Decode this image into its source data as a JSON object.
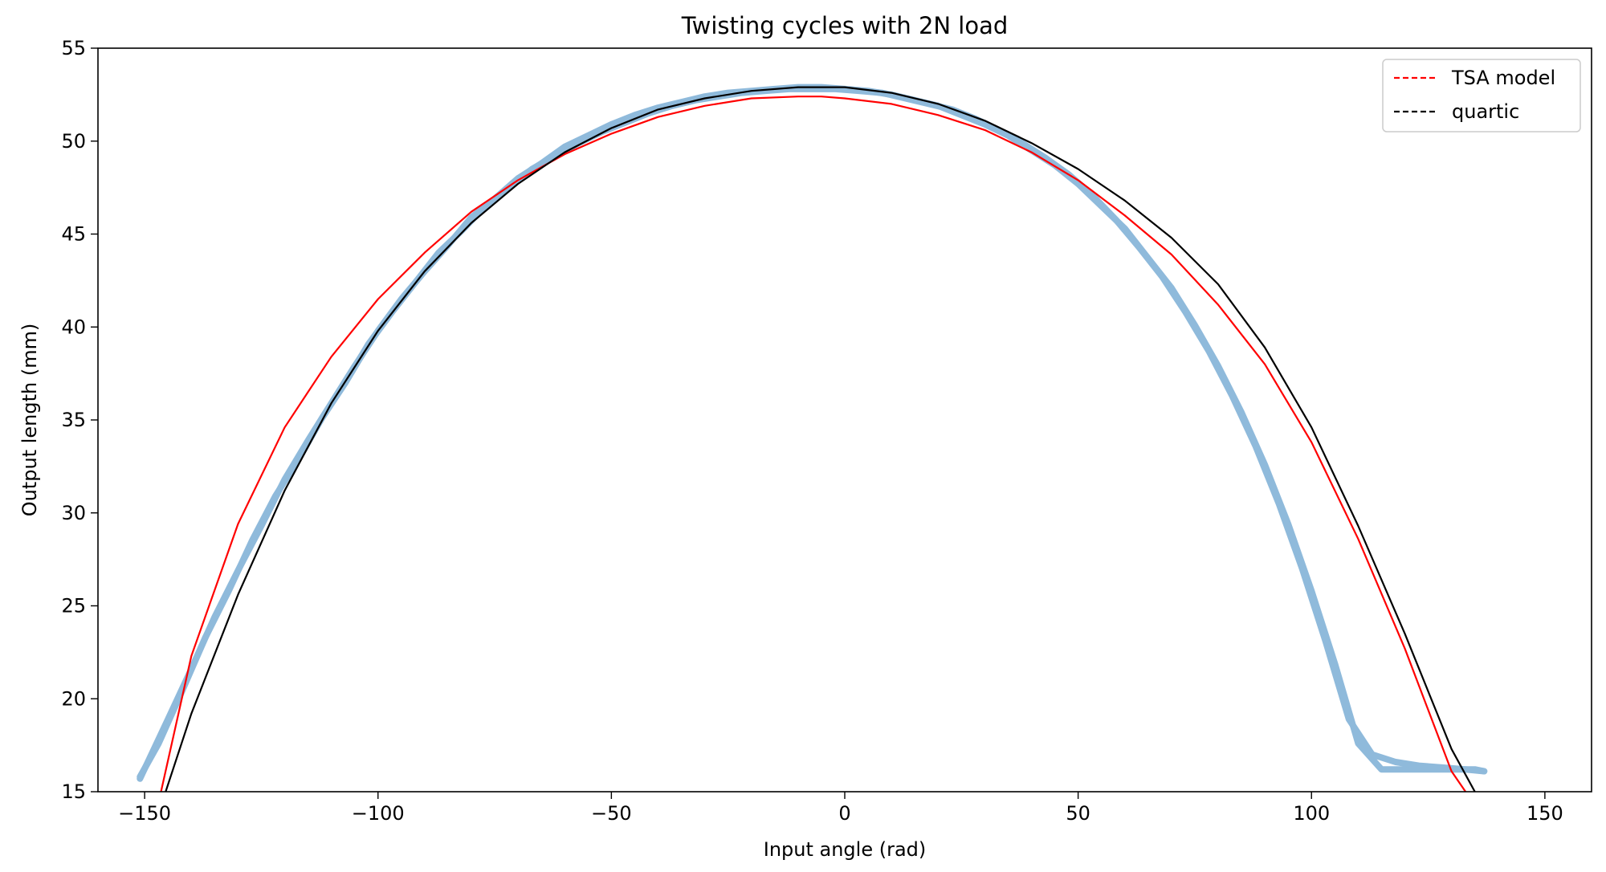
{
  "chart_data": {
    "type": "line",
    "title": "Twisting cycles with 2N load",
    "xlabel": "Input angle (rad)",
    "ylabel": "Output length (mm)",
    "xlim": [
      -160,
      160
    ],
    "ylim": [
      15,
      55
    ],
    "xticks": [
      -150,
      -100,
      -50,
      0,
      50,
      100,
      150
    ],
    "xtick_labels": [
      "−150",
      "−100",
      "−50",
      "0",
      "50",
      "100",
      "150"
    ],
    "yticks": [
      15,
      20,
      25,
      30,
      35,
      40,
      45,
      50,
      55
    ],
    "ytick_labels": [
      "15",
      "20",
      "25",
      "30",
      "35",
      "40",
      "45",
      "50",
      "55"
    ],
    "grid": false,
    "legend_position": "top-right",
    "colors": {
      "data": "#8fbadb",
      "tsa": "#ff0000",
      "quartic": "#000000"
    },
    "legend": [
      {
        "label": "TSA model",
        "color": "#ff0000",
        "dashed": true
      },
      {
        "label": "quartic",
        "color": "#000000",
        "dashed": true
      }
    ],
    "series": [
      {
        "role": "measured-cycle",
        "x": [
          -151,
          -145,
          -140,
          -135,
          -130,
          -125,
          -120,
          -115,
          -110,
          -105,
          -100,
          -95,
          -90,
          -85,
          -80,
          -75,
          -70,
          -65,
          -60,
          -55,
          -50,
          -45,
          -40,
          -35,
          -30,
          -25,
          -20,
          -15,
          -10,
          -5,
          0,
          5,
          10,
          15,
          20,
          25,
          30,
          35,
          40,
          45,
          50,
          55,
          60,
          65,
          70,
          75,
          80,
          85,
          90,
          95,
          100,
          105,
          110,
          115,
          120,
          125,
          130,
          135,
          137
        ],
        "y": [
          15.7,
          18.9,
          21.6,
          24.4,
          26.9,
          29.3,
          31.8,
          33.9,
          35.9,
          37.9,
          39.8,
          41.5,
          43.0,
          44.4,
          45.9,
          46.9,
          48.0,
          48.8,
          49.7,
          50.3,
          50.9,
          51.4,
          51.8,
          52.1,
          52.4,
          52.6,
          52.7,
          52.8,
          52.9,
          52.9,
          52.8,
          52.7,
          52.5,
          52.2,
          51.9,
          51.4,
          50.9,
          50.3,
          49.5,
          48.7,
          47.7,
          46.5,
          45.3,
          43.7,
          42.1,
          40.1,
          37.9,
          35.4,
          32.6,
          29.4,
          25.8,
          21.9,
          17.6,
          16.2,
          16.2,
          16.2,
          16.2,
          16.2,
          16.1
        ]
      },
      {
        "role": "measured-cycle",
        "x": [
          -151,
          -147,
          -142,
          -137,
          -132,
          -127,
          -122,
          -117,
          -112,
          -107,
          -102,
          -97,
          -92,
          -87,
          -82,
          -77,
          -72,
          -67,
          -62,
          -57,
          -52,
          -47,
          -42,
          -37,
          -32,
          -27,
          -22,
          -17,
          -12,
          -7,
          -2,
          3,
          8,
          13,
          18,
          23,
          28,
          33,
          38,
          43,
          48,
          53,
          58,
          63,
          68,
          73,
          78,
          83,
          88,
          93,
          98,
          103,
          108,
          113,
          118,
          123,
          128,
          133,
          137
        ],
        "y": [
          15.8,
          17.6,
          20.4,
          23.3,
          25.8,
          28.5,
          30.9,
          32.9,
          35.1,
          37.0,
          39.1,
          40.8,
          42.4,
          44.0,
          45.2,
          46.5,
          47.5,
          48.5,
          49.2,
          49.9,
          50.5,
          51.0,
          51.5,
          51.9,
          52.2,
          52.4,
          52.6,
          52.7,
          52.8,
          52.8,
          52.8,
          52.7,
          52.6,
          52.3,
          52.0,
          51.7,
          51.2,
          50.6,
          49.9,
          49.1,
          48.2,
          47.1,
          45.8,
          44.3,
          42.7,
          40.8,
          38.7,
          36.3,
          33.6,
          30.5,
          27.0,
          23.1,
          18.9,
          17.0,
          16.6,
          16.4,
          16.3,
          16.2,
          16.1
        ]
      }
    ],
    "model_curves": [
      {
        "name": "TSA model",
        "x": [
          -146.5,
          -140,
          -130,
          -120,
          -110,
          -100,
          -90,
          -80,
          -70,
          -60,
          -50,
          -40,
          -30,
          -20,
          -10,
          -5,
          0,
          10,
          20,
          30,
          40,
          50,
          60,
          70,
          80,
          90,
          100,
          110,
          120,
          130,
          133
        ],
        "y": [
          15.0,
          22.3,
          29.4,
          34.6,
          38.4,
          41.5,
          44.0,
          46.2,
          47.9,
          49.3,
          50.4,
          51.3,
          51.9,
          52.3,
          52.4,
          52.4,
          52.3,
          52.0,
          51.4,
          50.6,
          49.4,
          47.9,
          46.0,
          43.9,
          41.2,
          38.0,
          33.8,
          28.6,
          22.7,
          16.1,
          15.0
        ]
      },
      {
        "name": "quartic",
        "x": [
          -145.5,
          -140,
          -130,
          -120,
          -110,
          -100,
          -90,
          -80,
          -70,
          -60,
          -50,
          -40,
          -30,
          -20,
          -10,
          -5,
          0,
          10,
          20,
          30,
          40,
          50,
          60,
          70,
          80,
          90,
          100,
          110,
          120,
          130,
          135
        ],
        "y": [
          15.0,
          19.2,
          25.6,
          31.2,
          35.9,
          39.8,
          43.0,
          45.6,
          47.7,
          49.4,
          50.7,
          51.7,
          52.3,
          52.7,
          52.9,
          52.9,
          52.9,
          52.6,
          52.0,
          51.1,
          49.9,
          48.5,
          46.8,
          44.8,
          42.3,
          38.9,
          34.6,
          29.3,
          23.5,
          17.3,
          15.0
        ]
      }
    ]
  }
}
